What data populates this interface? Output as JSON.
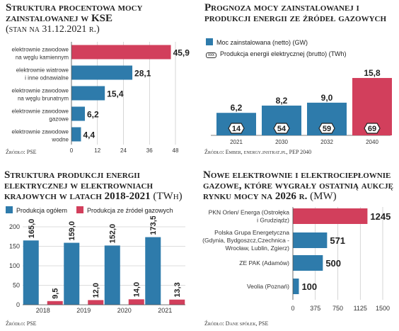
{
  "colors": {
    "blue": "#2e7bab",
    "red": "#d23f5c",
    "axis": "#555",
    "grid": "#bbb"
  },
  "panel1": {
    "title": "Struktura procentowa mocy zainstalowanej w KSE",
    "subtitle": "(stan na 31.12.2021 r.)",
    "source": "Źródło: PSE"
  },
  "panel2": {
    "title": "Prognoza mocy zainstalowanej i produkcji energii ze źródeł gazowych",
    "legend": {
      "bars": "Moc zainstalowana (netto) (GW)",
      "badges": "Produkcja energii elektrycznej (brutto) (TWh)",
      "badge_sample": "xxx"
    },
    "source": "Źródło: Ember, energy.instrat.pl, PEP 2040"
  },
  "panel3": {
    "title": "Struktura produkcji energii elektrycznej w elektrowniach krajowych w latach 2018-2021",
    "title_unit": "(TWh)",
    "legend": {
      "a": "Produkcja ogółem",
      "b": "Produkcja ze źródeł gazowych"
    },
    "source": "Źródło: PSE"
  },
  "panel4": {
    "title": "Nowe elektrownie i elektrociepłownie gazowe, które wygrały ostatnią aukcję rynku mocy na 2026 r.",
    "title_unit": "(MW)",
    "source": "Źródło: Dane spółek, PSE"
  },
  "chart_data": [
    {
      "type": "bar",
      "orientation": "horizontal",
      "categories": [
        [
          "elektrownie zawodowe",
          "na węglu kamiennym"
        ],
        [
          "elektrownie wiatrowe",
          "i inne odnawialne"
        ],
        [
          "elektrownie zawodowe",
          "na węglu brunatnym"
        ],
        [
          "elektrownie zawodowe",
          "gazowe"
        ],
        [
          "elektrownie zawodowe",
          "wodne"
        ]
      ],
      "values": [
        45.9,
        28.1,
        15.4,
        6.2,
        4.4
      ],
      "labels": [
        "45,9",
        "28,1",
        "15,4",
        "6,2",
        "4,4"
      ],
      "colors": [
        "red",
        "blue",
        "blue",
        "blue",
        "blue"
      ],
      "xticks": [
        "0",
        "12",
        "24",
        "36",
        "48"
      ],
      "xlim": [
        0,
        48
      ]
    },
    {
      "type": "bar",
      "categories": [
        "2021",
        "2030",
        "2032",
        "2040"
      ],
      "values": [
        6.2,
        8.2,
        9.0,
        15.8
      ],
      "labels": [
        "6,2",
        "8,2",
        "9,0",
        "15,8"
      ],
      "colors": [
        "blue",
        "blue",
        "blue",
        "red"
      ],
      "production": [
        14,
        54,
        59,
        69
      ],
      "ylim": [
        0,
        16
      ]
    },
    {
      "type": "bar",
      "categories": [
        "2018",
        "2019",
        "2020",
        "2021"
      ],
      "series": [
        {
          "name": "Produkcja ogółem",
          "values": [
            165.0,
            159.0,
            152.0,
            173.5
          ],
          "labels": [
            "165,0",
            "159,0",
            "152,0",
            "173,5"
          ]
        },
        {
          "name": "Produkcja ze źródeł gazowych",
          "values": [
            9.5,
            12.0,
            14.0,
            13.3
          ],
          "labels": [
            "9,5",
            "12,0",
            "14,0",
            "13,3"
          ]
        }
      ],
      "yticks": [
        "0",
        "50",
        "100",
        "150",
        "200"
      ],
      "ylim": [
        0,
        200
      ]
    },
    {
      "type": "bar",
      "orientation": "horizontal",
      "categories": [
        [
          "PKN Orlen/ Energa (Ostrołęka",
          "i Grudziądz)"
        ],
        [
          "Polska Grupa Energetyczna",
          "(Gdynia, Bydgoszcz,Czechnica -",
          "Wrocław, Lublin, Zgierz)"
        ],
        [
          "ZE PAK (Adamów)"
        ],
        [
          "Veolia (Poznań)"
        ]
      ],
      "values": [
        1245,
        571,
        500,
        100
      ],
      "labels": [
        "1245",
        "571",
        "500",
        "100"
      ],
      "colors": [
        "red",
        "blue",
        "blue",
        "blue"
      ],
      "xticks": [
        "0",
        "375",
        "750",
        "1125",
        "1500"
      ],
      "xlim": [
        0,
        1500
      ]
    }
  ]
}
